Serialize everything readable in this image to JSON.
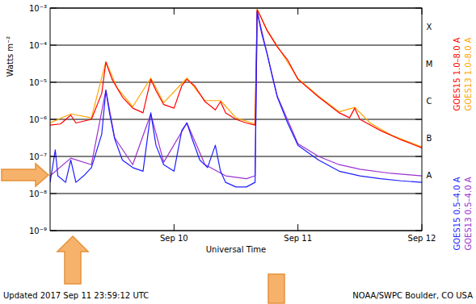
{
  "chart_data": {
    "type": "line",
    "y_label": "Watts m⁻²",
    "x_label": "Universal Time",
    "log": "y",
    "grid": true,
    "legend": "right",
    "xlim": [
      0,
      72
    ],
    "xticks": [
      {
        "value": 24,
        "label": "Sep 10"
      },
      {
        "value": 48,
        "label": "Sep 11"
      },
      {
        "value": 72,
        "label": "Sep 12"
      }
    ],
    "ylim": [
      1e-09,
      0.001
    ],
    "yticks": [
      {
        "value": 1e-09,
        "label": "10⁻⁹"
      },
      {
        "value": 1e-08,
        "label": "10⁻⁸"
      },
      {
        "value": 1e-07,
        "label": "10⁻⁷"
      },
      {
        "value": 1e-06,
        "label": "10⁻⁶"
      },
      {
        "value": 1e-05,
        "label": "10⁻⁵"
      },
      {
        "value": 0.0001,
        "label": "10⁻⁴"
      },
      {
        "value": 0.001,
        "label": "10⁻³"
      }
    ],
    "flare_classes": [
      {
        "label": "X",
        "value": 0.0001
      },
      {
        "label": "M",
        "value": 1e-05
      },
      {
        "label": "C",
        "value": 1e-06
      },
      {
        "label": "B",
        "value": 1e-07
      },
      {
        "label": "A",
        "value": 1e-08
      }
    ],
    "annotations": [
      "Updated 2017 Sep 11 23:59:12 UTC",
      "NOAA/SWPC Boulder, CO USA"
    ],
    "series": [
      {
        "name": "GOES13 1.0–8.0 A",
        "color": "#ffa500",
        "x": [
          0,
          4,
          8,
          10.8,
          13,
          16,
          19.5,
          22,
          26.5,
          30,
          33,
          36,
          39.7,
          40.1,
          42,
          44,
          48,
          52,
          56,
          59,
          62,
          66,
          72
        ],
        "values": [
          8e-07,
          1.4e-06,
          1.1e-06,
          3.6e-05,
          7e-06,
          2.2e-06,
          1.3e-05,
          2.8e-06,
          1.3e-05,
          3.2e-06,
          3.2e-06,
          1.1e-06,
          7.5e-07,
          0.00095,
          0.00026,
          9.5e-05,
          1.25e-05,
          4.2e-06,
          1.6e-06,
          2.1e-06,
          8e-07,
          3.8e-07,
          1.8e-07
        ]
      },
      {
        "name": "GOES15 1.0–8.0 A",
        "color": "#ff0000",
        "x": [
          0,
          2,
          4,
          5,
          8,
          10,
          10.8,
          12,
          14,
          16,
          18,
          19.5,
          20.5,
          22,
          24,
          25.5,
          26.5,
          28,
          30,
          32,
          33,
          34,
          36,
          38,
          39.7,
          40.1,
          41,
          42,
          44,
          46,
          48,
          52,
          56,
          58,
          59,
          60,
          64,
          68,
          72
        ],
        "values": [
          7e-07,
          7.5e-07,
          1.3e-06,
          8e-07,
          1e-06,
          5e-06,
          3.5e-05,
          1.2e-05,
          4e-06,
          2e-06,
          1.5e-06,
          1.2e-05,
          6e-06,
          2.5e-06,
          2e-06,
          8e-06,
          1.2e-05,
          8e-06,
          3e-06,
          1.8e-06,
          3e-06,
          1.5e-06,
          1e-06,
          8e-07,
          7e-07,
          0.0009,
          0.0005,
          0.00025,
          9e-05,
          4e-05,
          1.2e-05,
          4e-06,
          1.5e-06,
          1.1e-06,
          2e-06,
          1e-06,
          5e-07,
          2.8e-07,
          1.7e-07
        ]
      },
      {
        "name": "GOES13 0.5–4.0 A",
        "color": "#9b30d0",
        "x": [
          0,
          4,
          8,
          10.8,
          12.5,
          16,
          19.5,
          22,
          26.5,
          30,
          34,
          38,
          39.7,
          40.1,
          42,
          44,
          48,
          52,
          56,
          60,
          66,
          72
        ],
        "values": [
          3e-08,
          9e-08,
          6e-08,
          6.2e-06,
          3.2e-07,
          6e-08,
          1.4e-06,
          7e-08,
          8e-07,
          6e-08,
          3e-08,
          2.5e-08,
          3e-08,
          0.0008,
          6.2e-05,
          4.2e-06,
          2.2e-07,
          1e-07,
          6e-08,
          4.5e-08,
          3.5e-08,
          3e-08
        ]
      },
      {
        "name": "GOES15 0.5–4.0 A",
        "color": "#1e1eff",
        "x": [
          0,
          1,
          1.5,
          3,
          4,
          5,
          6.5,
          8,
          10,
          10.8,
          11.5,
          12.5,
          14,
          16,
          18,
          19.5,
          20.5,
          22,
          24,
          25.5,
          26.5,
          27.5,
          29,
          30.5,
          32,
          33,
          34,
          36,
          38,
          39.7,
          40.1,
          41,
          42,
          43,
          44,
          46,
          48,
          52,
          56,
          60,
          64,
          68,
          72
        ],
        "values": [
          2e-08,
          1.5e-07,
          3e-08,
          2e-08,
          8e-08,
          2e-08,
          3e-08,
          5e-08,
          4e-07,
          6e-06,
          1.5e-06,
          3e-07,
          8e-08,
          5e-08,
          4e-08,
          1.5e-06,
          2e-07,
          6e-08,
          4e-08,
          5e-07,
          8e-07,
          3e-07,
          8e-08,
          5e-08,
          2e-07,
          4e-08,
          2e-08,
          1.5e-08,
          1.5e-08,
          2e-08,
          0.0008,
          0.0002,
          6e-05,
          1.5e-05,
          4e-06,
          8e-07,
          2e-07,
          8e-08,
          4e-08,
          3e-08,
          2.5e-08,
          2.2e-08,
          2e-08
        ]
      }
    ]
  }
}
